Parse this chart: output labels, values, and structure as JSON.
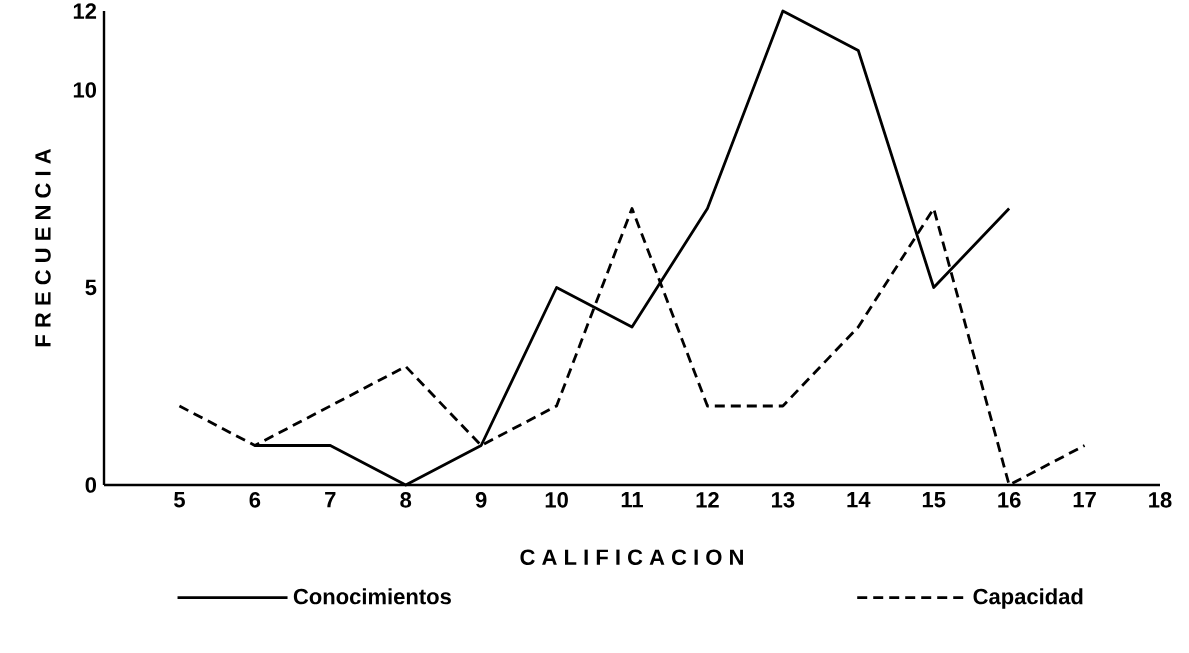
{
  "chart_data": {
    "type": "line",
    "xlabel": "C A L I F I C A C I O N",
    "ylabel": "F R E C U E N C I A",
    "xlim": [
      4,
      18
    ],
    "xticks": [
      5,
      6,
      7,
      8,
      9,
      10,
      11,
      12,
      13,
      14,
      15,
      16,
      17,
      18
    ],
    "ylim": [
      0,
      12
    ],
    "yticks": [
      0,
      5,
      10,
      12
    ],
    "grid": false,
    "legend": "bottom",
    "marker": "none",
    "series": [
      {
        "name": "Conocimientos",
        "color": "#000000",
        "line_style": "solid",
        "x": [
          6,
          7,
          8,
          9,
          10,
          11,
          12,
          13,
          14,
          15,
          16
        ],
        "values": [
          1,
          1,
          0,
          1,
          5,
          4,
          7,
          12,
          11,
          5,
          7
        ]
      },
      {
        "name": "Capacidad",
        "color": "#000000",
        "line_style": "dashed",
        "x": [
          5,
          6,
          7,
          8,
          9,
          10,
          11,
          12,
          13,
          14,
          15,
          16,
          17
        ],
        "values": [
          2,
          1,
          2,
          3,
          1,
          2,
          7,
          2,
          2,
          4,
          7,
          0,
          1
        ]
      }
    ]
  }
}
